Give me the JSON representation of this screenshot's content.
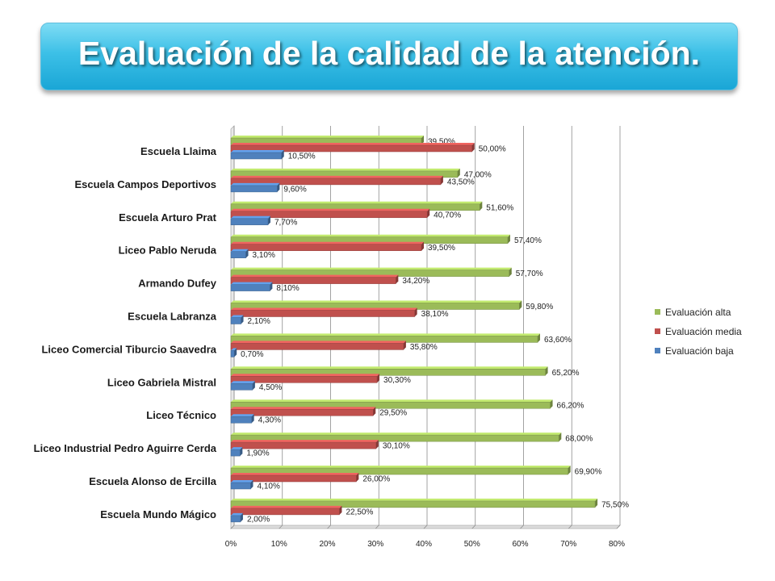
{
  "title": "Evaluación de la calidad de la atención.",
  "colors": {
    "alta": "#9BBB59",
    "media": "#C0504D",
    "baja": "#4F81BD"
  },
  "chart_data": {
    "type": "bar",
    "orientation": "horizontal",
    "title": "",
    "categories": [
      "Escuela Llaima",
      "Escuela Campos Deportivos",
      "Escuela Arturo Prat",
      "Liceo Pablo Neruda",
      "Armando Dufey",
      "Escuela Labranza",
      "Liceo Comercial Tiburcio Saavedra",
      "Liceo Gabriela Mistral",
      "Liceo Técnico",
      "Liceo Industrial Pedro Aguirre Cerda",
      "Escuela Alonso de Ercilla",
      "Escuela Mundo Mágico"
    ],
    "series": [
      {
        "name": "Evaluación alta",
        "values": [
          39.5,
          47.0,
          51.6,
          57.4,
          57.7,
          59.8,
          63.6,
          65.2,
          66.2,
          68.0,
          69.9,
          75.5
        ],
        "labels": [
          "39,50%",
          "47,00%",
          "51,60%",
          "57,40%",
          "57,70%",
          "59,80%",
          "63,60%",
          "65,20%",
          "66,20%",
          "68,00%",
          "69,90%",
          "75,50%"
        ]
      },
      {
        "name": "Evaluación media",
        "values": [
          50.0,
          43.5,
          40.7,
          39.5,
          34.2,
          38.1,
          35.8,
          30.3,
          29.5,
          30.1,
          26.0,
          22.5
        ],
        "labels": [
          "50,00%",
          "43,50%",
          "40,70%",
          "39,50%",
          "34,20%",
          "38,10%",
          "35,80%",
          "30,30%",
          "29,50%",
          "30,10%",
          "26,00%",
          "22,50%"
        ]
      },
      {
        "name": "Evaluación baja",
        "values": [
          10.5,
          9.6,
          7.7,
          3.1,
          8.1,
          2.1,
          0.7,
          4.5,
          4.3,
          1.9,
          4.1,
          2.0
        ],
        "labels": [
          "10,50%",
          "9,60%",
          "7,70%",
          "3,10%",
          "8,10%",
          "2,10%",
          "0,70%",
          "4,50%",
          "4,30%",
          "1,90%",
          "4,10%",
          "2,00%"
        ]
      }
    ],
    "x_ticks": [
      "0%",
      "10%",
      "20%",
      "30%",
      "40%",
      "50%",
      "60%",
      "70%",
      "80%"
    ],
    "xlim": [
      0,
      80
    ],
    "grid": true,
    "legend_position": "right"
  }
}
